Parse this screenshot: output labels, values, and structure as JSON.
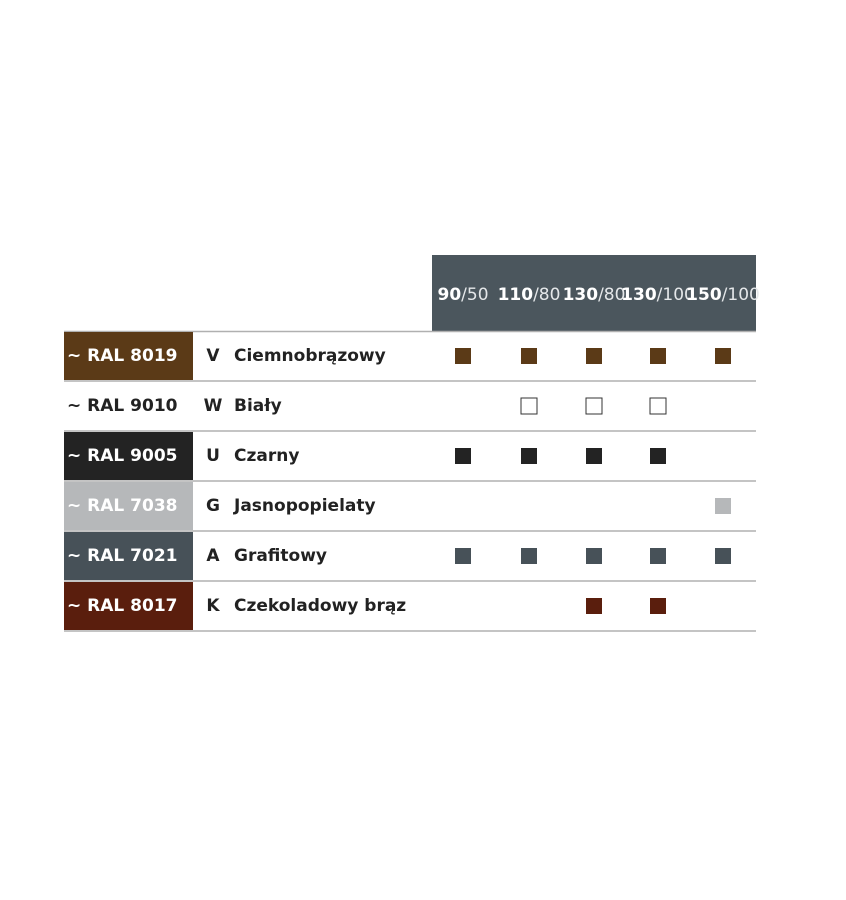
{
  "table": {
    "columns": [
      {
        "bold": "90",
        "rest": "/50"
      },
      {
        "bold": "110",
        "rest": "/80"
      },
      {
        "bold": "130",
        "rest": "/80"
      },
      {
        "bold": "130",
        "rest": "/100"
      },
      {
        "bold": "150",
        "rest": "/100"
      }
    ],
    "header_color": "#4b565d",
    "rows": [
      {
        "ral": "~ RAL 8019",
        "code": "V",
        "name": "Ciemnobrązowy",
        "color": "#5b3a17",
        "text_color": "#ffffff",
        "available": [
          true,
          true,
          true,
          true,
          true
        ]
      },
      {
        "ral": "~ RAL 9010",
        "code": "W",
        "name": "Biały",
        "color": "#ffffff",
        "text_color": "#222222",
        "available": [
          false,
          true,
          true,
          true,
          false
        ]
      },
      {
        "ral": "~ RAL 9005",
        "code": "U",
        "name": "Czarny",
        "color": "#232323",
        "text_color": "#ffffff",
        "available": [
          true,
          true,
          true,
          true,
          false
        ]
      },
      {
        "ral": "~ RAL 7038",
        "code": "G",
        "name": "Jasnopopielaty",
        "color": "#b6b8ba",
        "text_color": "#ffffff",
        "available": [
          false,
          false,
          false,
          false,
          true
        ]
      },
      {
        "ral": "~ RAL 7021",
        "code": "A",
        "name": "Grafitowy",
        "color": "#475158",
        "text_color": "#ffffff",
        "available": [
          true,
          true,
          true,
          true,
          true
        ]
      },
      {
        "ral": "~ RAL 8017",
        "code": "K",
        "name": "Czekoladowy brąz",
        "color": "#5a1e0d",
        "text_color": "#ffffff",
        "available": [
          false,
          false,
          true,
          true,
          false
        ]
      }
    ]
  }
}
